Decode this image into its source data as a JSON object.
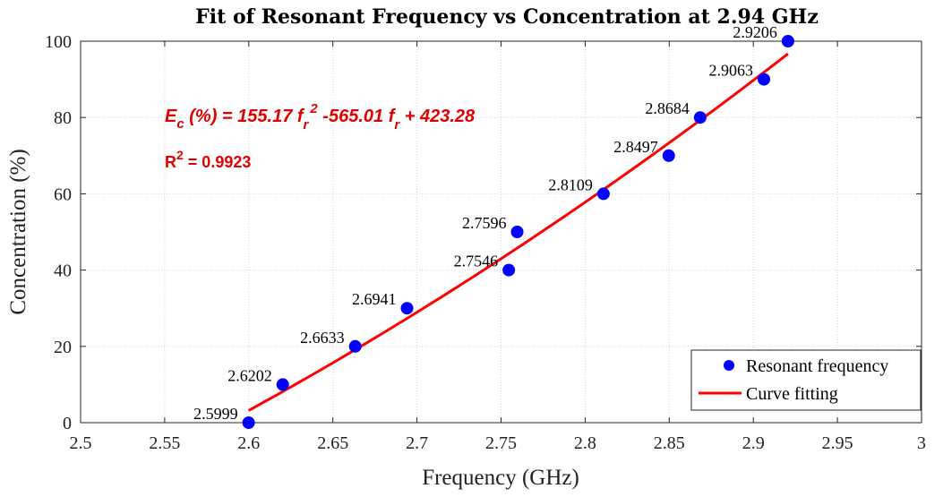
{
  "chart_data": {
    "type": "scatter",
    "title": "Fit of Resonant Frequency vs Concentration at 2.94 GHz",
    "xlabel": "Frequency (GHz)",
    "ylabel": "Concentration (%)",
    "xlim": [
      2.5,
      3.0
    ],
    "ylim": [
      0,
      100
    ],
    "x_ticks": [
      2.5,
      2.55,
      2.6,
      2.65,
      2.7,
      2.75,
      2.8,
      2.85,
      2.9,
      2.95,
      3.0
    ],
    "x_tick_labels": [
      "2.5",
      "2.55",
      "2.6",
      "2.65",
      "2.7",
      "2.75",
      "2.8",
      "2.85",
      "2.9",
      "2.95",
      "3"
    ],
    "y_ticks": [
      0,
      20,
      40,
      60,
      80,
      100
    ],
    "y_tick_labels": [
      "0",
      "20",
      "40",
      "60",
      "80",
      "100"
    ],
    "grid": true,
    "series": [
      {
        "name": "Resonant frequency",
        "kind": "scatter",
        "color": "#0000ff",
        "x": [
          2.5999,
          2.6202,
          2.6633,
          2.6941,
          2.7546,
          2.7596,
          2.8109,
          2.8497,
          2.8684,
          2.9063,
          2.9206
        ],
        "y": [
          0,
          10,
          20,
          30,
          40,
          50,
          60,
          70,
          80,
          90,
          100
        ],
        "labels": [
          "2.5999",
          "2.6202",
          "2.6633",
          "2.6941",
          "2.7546",
          "2.7596",
          "2.8109",
          "2.8497",
          "2.8684",
          "2.9063",
          "2.9206"
        ]
      },
      {
        "name": "Curve fitting",
        "kind": "line",
        "color": "#ff0000",
        "coefficients": [
          155.17,
          -565.01,
          423.28
        ],
        "x_range": [
          2.5999,
          2.9206
        ]
      }
    ],
    "annotations": {
      "equation": {
        "lhs_main": "E",
        "lhs_sub": "c",
        "lhs_rest": " (%) = 155.17 ",
        "f1": "f",
        "f1_sub": "r",
        "f1_sup": "2",
        "middle": " -565.01 ",
        "f2": "f",
        "f2_sub": "r",
        "rest": " + 423.28"
      },
      "r_squared": {
        "main": "R",
        "sup": "2",
        "value": " = 0.9923"
      }
    },
    "legend_position": "bottom-right"
  }
}
